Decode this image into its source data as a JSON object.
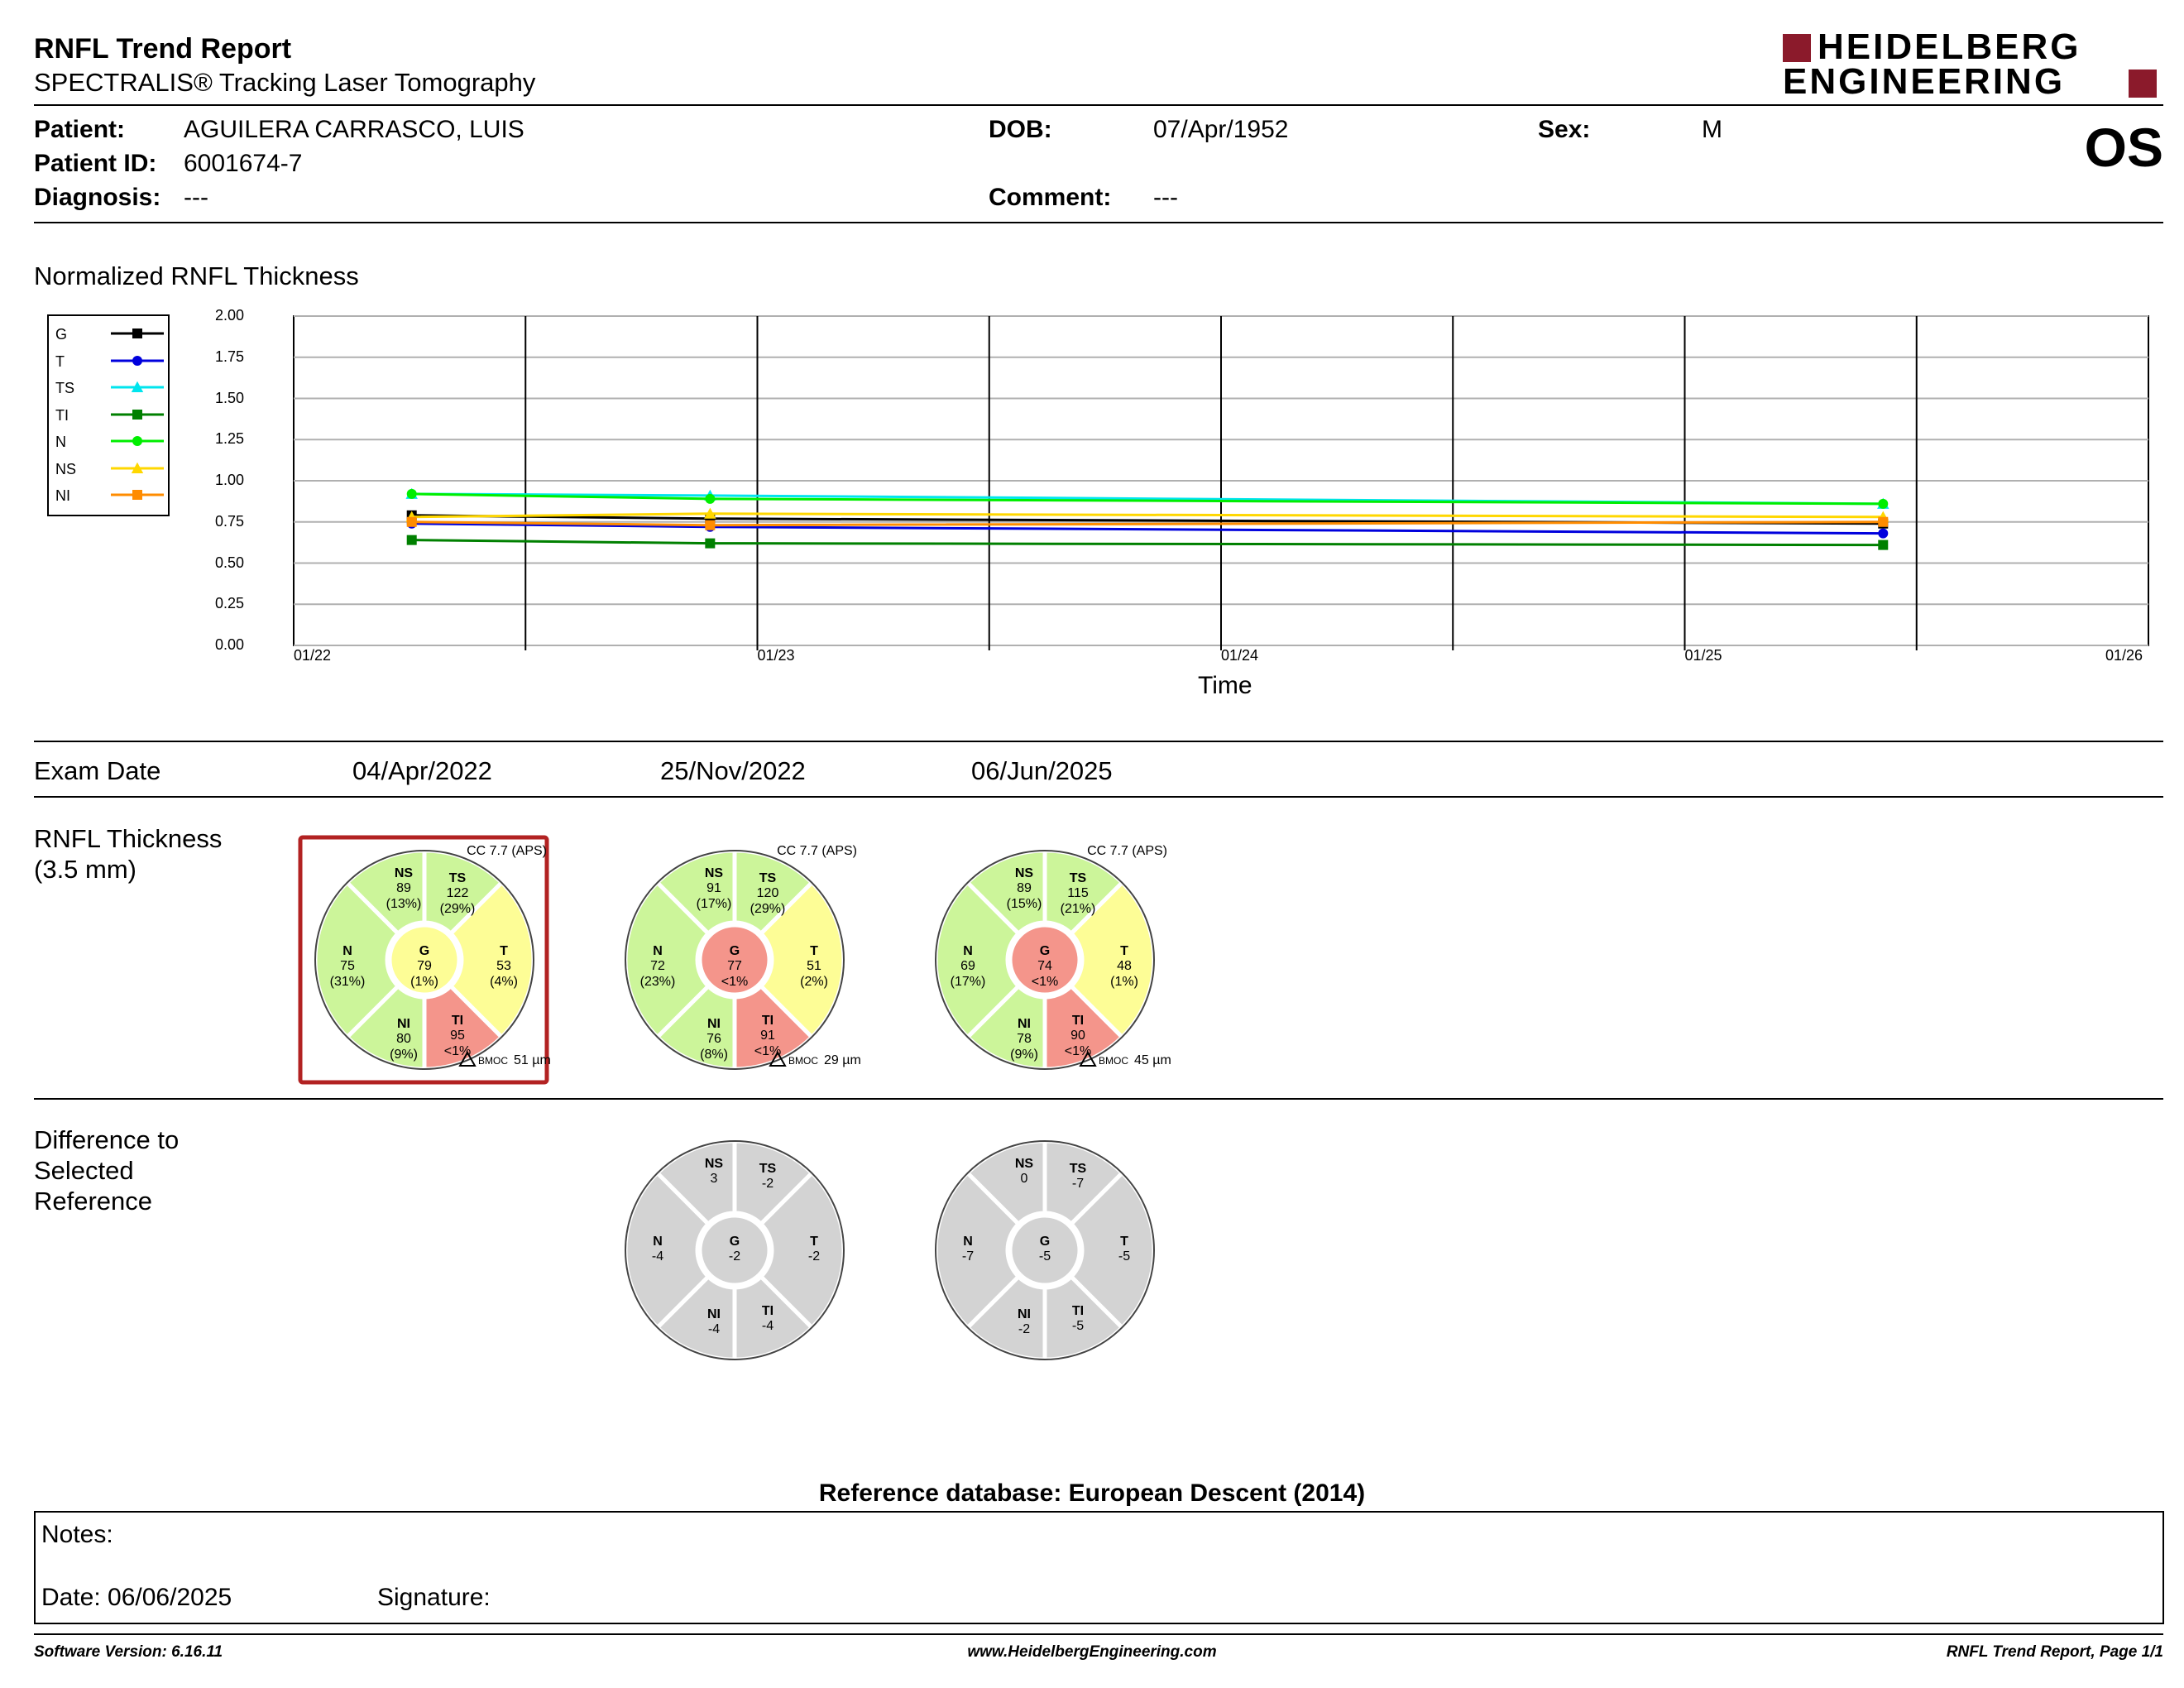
{
  "report": {
    "title": "RNFL Trend Report",
    "subtitle": "SPECTRALIS® Tracking Laser Tomography",
    "logo_line1": "HEIDELBERG",
    "logo_line2": "ENGINEERING",
    "eye": "OS"
  },
  "patient": {
    "patient_label": "Patient:",
    "patient_value": "AGUILERA CARRASCO, LUIS",
    "id_label": "Patient ID:",
    "id_value": "6001674-7",
    "diagnosis_label": "Diagnosis:",
    "diagnosis_value": "---",
    "dob_label": "DOB:",
    "dob_value": "07/Apr/1952",
    "comment_label": "Comment:",
    "comment_value": "---",
    "sex_label": "Sex:",
    "sex_value": "M"
  },
  "colors": {
    "green": "#ccf59a",
    "yellow": "#fdfd96",
    "red": "#f4958b",
    "gray": "#d3d3d3",
    "selected_border": "#b22222",
    "logo": "#8b1a2b"
  },
  "chart_data": {
    "type": "line",
    "title": "Normalized RNFL Thickness",
    "xlabel": "Time",
    "ylabel": "",
    "ylim": [
      0,
      2
    ],
    "yticks": [
      "0.00",
      "0.25",
      "0.50",
      "0.75",
      "1.00",
      "1.25",
      "1.50",
      "1.75",
      "2.00"
    ],
    "xticks": [
      "01/22",
      "01/23",
      "01/24",
      "01/25",
      "01/26"
    ],
    "xlim": [
      "2022-01-01",
      "2026-01-01"
    ],
    "x": [
      "2022-04-04",
      "2022-11-25",
      "2025-06-06"
    ],
    "grid": true,
    "legend_position": "top-left",
    "series": [
      {
        "name": "G",
        "color": "#000000",
        "marker": "square",
        "values": [
          0.79,
          0.77,
          0.74
        ]
      },
      {
        "name": "T",
        "color": "#0000dd",
        "marker": "circle",
        "values": [
          0.74,
          0.72,
          0.68
        ]
      },
      {
        "name": "TS",
        "color": "#00e5ee",
        "marker": "triangle",
        "values": [
          0.92,
          0.91,
          0.86
        ]
      },
      {
        "name": "TI",
        "color": "#008000",
        "marker": "square",
        "values": [
          0.64,
          0.62,
          0.61
        ]
      },
      {
        "name": "N",
        "color": "#00ee00",
        "marker": "circle",
        "values": [
          0.92,
          0.89,
          0.86
        ]
      },
      {
        "name": "NS",
        "color": "#ffd700",
        "marker": "triangle",
        "values": [
          0.78,
          0.8,
          0.78
        ]
      },
      {
        "name": "NI",
        "color": "#ff8c00",
        "marker": "square",
        "values": [
          0.75,
          0.73,
          0.75
        ]
      }
    ]
  },
  "exams": {
    "exam_date_label": "Exam Date",
    "dates": [
      "04/Apr/2022",
      "25/Nov/2022",
      "06/Jun/2025"
    ],
    "thickness_label_1": "RNFL Thickness",
    "thickness_label_2": "(3.5 mm)",
    "diff_label_1": "Difference to",
    "diff_label_2": "Selected",
    "diff_label_3": "Reference",
    "thickness": [
      {
        "cc": "CC 7.7 (APS)",
        "bmo_label": "BMOC",
        "bmo": "51 µm",
        "selected": true,
        "sectors": {
          "NS": {
            "value": "89",
            "pct": "(13%)",
            "cls": "green"
          },
          "TS": {
            "value": "122",
            "pct": "(29%)",
            "cls": "green"
          },
          "T": {
            "value": "53",
            "pct": "(4%)",
            "cls": "yellow"
          },
          "TI": {
            "value": "95",
            "pct": "<1%",
            "cls": "red"
          },
          "NI": {
            "value": "80",
            "pct": "(9%)",
            "cls": "green"
          },
          "N": {
            "value": "75",
            "pct": "(31%)",
            "cls": "green"
          },
          "G": {
            "value": "79",
            "pct": "(1%)",
            "cls": "yellow"
          }
        }
      },
      {
        "cc": "CC 7.7 (APS)",
        "bmo_label": "BMOC",
        "bmo": "29 µm",
        "selected": false,
        "sectors": {
          "NS": {
            "value": "91",
            "pct": "(17%)",
            "cls": "green"
          },
          "TS": {
            "value": "120",
            "pct": "(29%)",
            "cls": "green"
          },
          "T": {
            "value": "51",
            "pct": "(2%)",
            "cls": "yellow"
          },
          "TI": {
            "value": "91",
            "pct": "<1%",
            "cls": "red"
          },
          "NI": {
            "value": "76",
            "pct": "(8%)",
            "cls": "green"
          },
          "N": {
            "value": "72",
            "pct": "(23%)",
            "cls": "green"
          },
          "G": {
            "value": "77",
            "pct": "<1%",
            "cls": "red"
          }
        }
      },
      {
        "cc": "CC 7.7 (APS)",
        "bmo_label": "BMOC",
        "bmo": "45 µm",
        "selected": false,
        "sectors": {
          "NS": {
            "value": "89",
            "pct": "(15%)",
            "cls": "green"
          },
          "TS": {
            "value": "115",
            "pct": "(21%)",
            "cls": "green"
          },
          "T": {
            "value": "48",
            "pct": "(1%)",
            "cls": "yellow"
          },
          "TI": {
            "value": "90",
            "pct": "<1%",
            "cls": "red"
          },
          "NI": {
            "value": "78",
            "pct": "(9%)",
            "cls": "green"
          },
          "N": {
            "value": "69",
            "pct": "(17%)",
            "cls": "green"
          },
          "G": {
            "value": "74",
            "pct": "<1%",
            "cls": "red"
          }
        }
      }
    ],
    "difference": [
      {
        "sectors": {
          "NS": {
            "value": "3"
          },
          "TS": {
            "value": "-2"
          },
          "T": {
            "value": "-2"
          },
          "TI": {
            "value": "-4"
          },
          "NI": {
            "value": "-4"
          },
          "N": {
            "value": "-4"
          },
          "G": {
            "value": "-2"
          }
        }
      },
      {
        "sectors": {
          "NS": {
            "value": "0"
          },
          "TS": {
            "value": "-7"
          },
          "T": {
            "value": "-5"
          },
          "TI": {
            "value": "-5"
          },
          "NI": {
            "value": "-2"
          },
          "N": {
            "value": "-7"
          },
          "G": {
            "value": "-5"
          }
        }
      }
    ]
  },
  "reference_db": "Reference database: European Descent (2014)",
  "notes": {
    "notes_label": "Notes:",
    "date_label": "Date: 06/06/2025",
    "signature_label": "Signature:"
  },
  "footer": {
    "software": "Software Version: 6.16.11",
    "website": "www.HeidelbergEngineering.com",
    "page": "RNFL Trend Report, Page 1/1"
  }
}
